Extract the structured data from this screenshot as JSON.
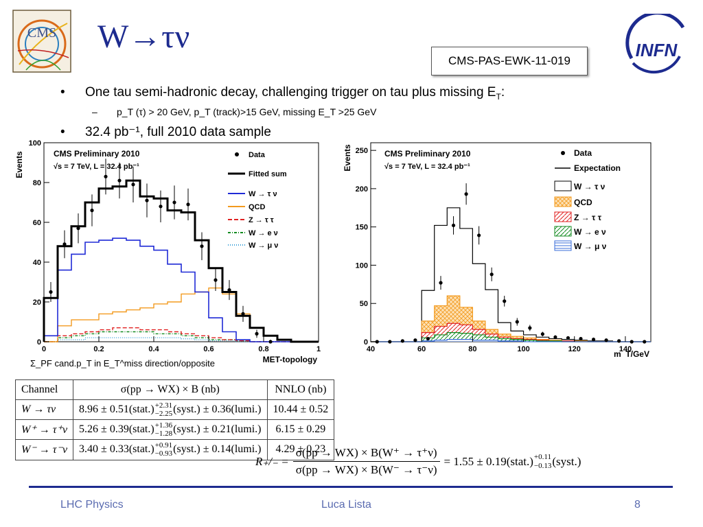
{
  "header": {
    "title": "W→τν",
    "pas_id": "CMS-PAS-EWK-11-019",
    "cms_logo_text": "CMS",
    "infn_logo_text": "INFN"
  },
  "bullets": {
    "b1": "One tau semi-hadronic decay, challenging trigger on tau plus missing E",
    "b1_sub": "T",
    "b1_end": ":",
    "sub1": "p_T (τ) > 20 GeV, p_T (track)>15 GeV, missing E_T >25 GeV",
    "b2": "32.4 pb⁻¹, full 2010 data sample"
  },
  "plot_caption": "Σ_PF cand.p_T in E_T^miss direction/opposite",
  "chart_data": [
    {
      "type": "line",
      "title": "CMS Preliminary 2010",
      "subtitle": "√s = 7 TeV, L = 32.4 pb⁻¹",
      "xlabel": "MET-topology",
      "ylabel": "Events",
      "xlim": [
        0,
        1
      ],
      "ylim": [
        0,
        100
      ],
      "yticks": [
        0,
        20,
        40,
        60,
        80,
        100
      ],
      "xticks": [
        0,
        0.2,
        0.4,
        0.6,
        0.8,
        1
      ],
      "legend_position": "top-right",
      "bin_edges": [
        0,
        0.05,
        0.1,
        0.15,
        0.2,
        0.25,
        0.3,
        0.35,
        0.4,
        0.45,
        0.5,
        0.55,
        0.6,
        0.65,
        0.7,
        0.75,
        0.8,
        0.85,
        0.9,
        0.95,
        1.0
      ],
      "data_points": {
        "x": [
          0.025,
          0.075,
          0.125,
          0.175,
          0.225,
          0.275,
          0.325,
          0.375,
          0.425,
          0.475,
          0.525,
          0.575,
          0.625,
          0.675,
          0.725,
          0.775,
          0.825
        ],
        "y": [
          25,
          49,
          57,
          66,
          83,
          81,
          79,
          71,
          68,
          70,
          69,
          48,
          31,
          26,
          14,
          4,
          0
        ],
        "err": [
          5,
          7,
          7.5,
          8,
          9,
          9,
          9,
          8.5,
          8,
          8.5,
          8,
          7,
          5.5,
          5,
          4,
          2,
          1
        ]
      },
      "series": [
        {
          "name": "Fitted sum",
          "color": "#000000",
          "values": [
            22,
            48,
            58,
            70,
            77,
            78,
            81,
            73,
            72,
            66,
            65,
            51,
            37,
            25,
            13,
            7,
            3,
            1,
            0,
            0
          ]
        },
        {
          "name": "W → τ ν",
          "color": "#1f2ad6",
          "values": [
            3,
            36,
            44,
            50,
            51,
            52,
            51,
            48,
            46,
            39,
            35,
            25,
            12,
            5,
            1,
            0,
            0,
            0,
            0,
            0
          ]
        },
        {
          "name": "QCD",
          "color": "#f39a1e",
          "values": [
            0,
            8,
            11,
            11,
            14,
            15,
            16,
            17,
            19,
            20,
            24,
            25,
            27,
            24,
            14,
            7,
            3,
            1,
            0,
            0
          ]
        },
        {
          "name": "Z → τ τ",
          "color": "#e02020",
          "values": [
            0,
            3,
            4,
            5,
            6,
            7,
            7,
            6,
            6,
            5,
            4,
            3,
            2,
            1,
            0.5,
            0,
            0,
            0,
            0,
            0
          ]
        },
        {
          "name": "W → e ν",
          "color": "#118a1e",
          "values": [
            0,
            2,
            3,
            4,
            5,
            5,
            5,
            5,
            4,
            4,
            3,
            2,
            1,
            1,
            0.5,
            0,
            0,
            0,
            0,
            0
          ]
        },
        {
          "name": "W → μ ν",
          "color": "#3aa0d8",
          "values": [
            0,
            1,
            1,
            2,
            2,
            2,
            2,
            2,
            2,
            2,
            1.5,
            1,
            0.5,
            0.5,
            0,
            0,
            0,
            0,
            0,
            0
          ]
        }
      ]
    },
    {
      "type": "area",
      "title": "CMS Preliminary 2010",
      "subtitle": "√s = 7 TeV, L = 32.4 pb⁻¹",
      "xlabel": "m_T/GeV",
      "ylabel": "Events",
      "xlim": [
        40,
        150
      ],
      "ylim": [
        0,
        260
      ],
      "yticks": [
        0,
        50,
        100,
        150,
        200,
        250
      ],
      "xticks": [
        40,
        60,
        80,
        100,
        120,
        140
      ],
      "legend_position": "top-right",
      "bin_edges": [
        40,
        45,
        50,
        55,
        60,
        65,
        70,
        75,
        80,
        85,
        90,
        95,
        100,
        105,
        110,
        115,
        120,
        125,
        130,
        135,
        140,
        145,
        150
      ],
      "data_points": {
        "x": [
          42.5,
          47.5,
          52.5,
          57.5,
          62.5,
          67.5,
          72.5,
          77.5,
          82.5,
          87.5,
          92.5,
          97.5,
          102.5,
          107.5,
          112.5,
          117.5,
          122.5,
          127.5,
          132.5,
          137.5,
          142.5,
          147.5
        ],
        "y": [
          0,
          0,
          1,
          2,
          4,
          77,
          152,
          193,
          139,
          88,
          53,
          26,
          18,
          10,
          6,
          5,
          4,
          3,
          2,
          1,
          0,
          0
        ],
        "err": [
          0.5,
          0.5,
          1,
          1.5,
          2,
          9,
          12,
          14,
          12,
          9,
          7,
          5,
          4,
          3,
          2.5,
          2,
          2,
          1.5,
          1.5,
          1,
          0.5,
          0.5
        ]
      },
      "series": [
        {
          "name": "W → τ ν",
          "color": "#000000",
          "values": [
            0,
            0,
            0,
            0,
            67,
            152,
            175,
            148,
            102,
            68,
            25,
            14,
            9,
            6,
            4,
            3,
            2,
            1,
            1,
            0,
            0,
            0
          ]
        },
        {
          "name": "QCD",
          "color": "#f39a1e",
          "values": [
            0,
            0,
            0,
            0,
            27,
            47,
            60,
            45,
            27,
            16,
            10,
            7,
            5,
            3,
            2,
            1,
            1,
            0,
            0,
            0,
            0,
            0
          ]
        },
        {
          "name": "Z → τ τ",
          "color": "#e02020",
          "values": [
            0,
            0,
            0,
            0,
            12,
            20,
            24,
            22,
            16,
            10,
            6,
            4,
            3,
            2,
            1,
            1,
            0,
            0,
            0,
            0,
            0,
            0
          ]
        },
        {
          "name": "W → e ν",
          "color": "#118a1e",
          "values": [
            0,
            0,
            0,
            0,
            5,
            9,
            12,
            11,
            9,
            6,
            4,
            3,
            2,
            1,
            1,
            0,
            0,
            0,
            0,
            0,
            0,
            0
          ]
        },
        {
          "name": "W → μ ν",
          "color": "#3a6cd8",
          "values": [
            0,
            0,
            0,
            0,
            1,
            2,
            3,
            3,
            2,
            2,
            1,
            1,
            0,
            0,
            0,
            0,
            0,
            0,
            0,
            0,
            0,
            0
          ]
        }
      ]
    }
  ],
  "legend1": {
    "data": "Data",
    "fitted": "Fitted sum",
    "w_tau": "W → τ ν",
    "qcd": "QCD",
    "z_tautau": "Z → τ τ",
    "w_e": "W → e ν",
    "w_mu": "W → μ ν"
  },
  "legend2": {
    "data": "Data",
    "expectation": "Expectation",
    "w_tau": "W → τ ν",
    "qcd": "QCD",
    "z_tautau": "Z → τ τ",
    "w_e": "W → e ν",
    "w_mu": "W → μ ν"
  },
  "table": {
    "headers": [
      "Channel",
      "σ(pp → WX) × B (nb)",
      "NNLO (nb)"
    ],
    "rows": [
      {
        "channel": "W → τν",
        "value": "8.96 ± 0.51(stat.)",
        "syst_up": "+2.31",
        "syst_dn": "−2.25",
        "rest": "(syst.) ± 0.36(lumi.)",
        "nnlo": "10.44 ± 0.52"
      },
      {
        "channel": "W⁺ → τ⁺ν",
        "value": "5.26 ± 0.39(stat.)",
        "syst_up": "+1.36",
        "syst_dn": "−1.28",
        "rest": "(syst.) ± 0.21(lumi.)",
        "nnlo": "6.15 ± 0.29"
      },
      {
        "channel": "W⁻ → τ⁻ν",
        "value": "3.40 ± 0.33(stat.)",
        "syst_up": "+0.91",
        "syst_dn": "−0.93",
        "rest": "(syst.) ± 0.14(lumi.)",
        "nnlo": "4.29 ± 0.23"
      }
    ]
  },
  "ratio": {
    "lhs": "R₊/₋ =",
    "num": "σ(pp → WX) × B(W⁺ → τ⁺ν)",
    "den": "σ(pp → WX) × B(W⁻ → τ⁻ν)",
    "rhs": "= 1.55 ± 0.19(stat.)",
    "up": "+0.11",
    "dn": "−0.13",
    "end": "(syst.)"
  },
  "footer": {
    "left": "LHC Physics",
    "center": "Luca Lista",
    "page": "8"
  }
}
